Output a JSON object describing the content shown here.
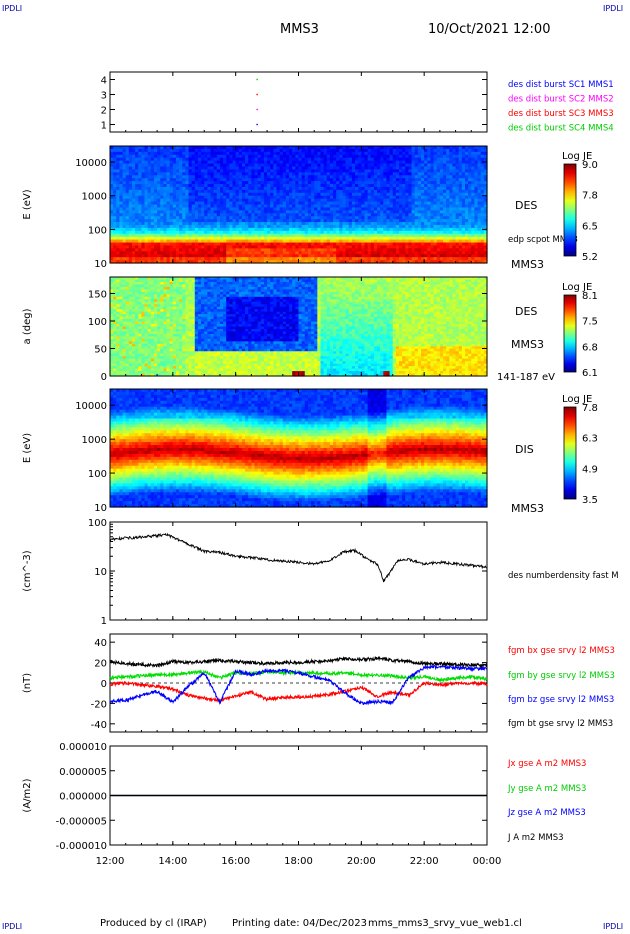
{
  "header": {
    "corner_label": "IPDLI",
    "spacecraft": "MMS3",
    "datetime": "10/Oct/2021 12:00"
  },
  "footer": {
    "produced_by": "Produced by cl (IRAP)",
    "printing_date": "Printing date: 04/Dec/2023",
    "script_name": "mms_mms3_srvy_vue_web1.cl"
  },
  "chart_data": [
    {
      "type": "scatter",
      "panel": "burst-availability",
      "ylim": [
        0.5,
        4.5
      ],
      "y_ticks": [
        "1",
        "2",
        "3",
        "4"
      ],
      "series": [
        {
          "name": "des dist burst SC1 MMS1",
          "color": "#0000ff",
          "x": [
            "16:41"
          ],
          "y": [
            1
          ]
        },
        {
          "name": "des dist burst SC2 MMS2",
          "color": "#ff00ff",
          "x": [
            "16:41"
          ],
          "y": [
            2
          ]
        },
        {
          "name": "des dist burst SC3 MMS3",
          "color": "#ff0000",
          "x": [
            "16:41"
          ],
          "y": [
            3
          ]
        },
        {
          "name": "des dist burst SC4 MMS4",
          "color": "#00cc00",
          "x": [
            "16:41"
          ],
          "y": [
            4
          ]
        }
      ]
    },
    {
      "type": "heatmap",
      "panel": "des-energy",
      "ylabel": "E (eV)",
      "y_scale": "log",
      "ylim": [
        10,
        30000
      ],
      "y_ticks": [
        "10",
        "100",
        "1000",
        "10000"
      ],
      "instrument": "DES",
      "spacecraft": "MMS3",
      "overlay_label": "edp scpot MMS3",
      "colorbar": {
        "title": "Log JE",
        "ticks": [
          "9.0",
          "7.8",
          "6.5",
          "5.2"
        ],
        "range": [
          5.2,
          9.0
        ]
      }
    },
    {
      "type": "heatmap",
      "panel": "des-pitch-angle",
      "ylabel": "a (deg)",
      "ylim": [
        0,
        180
      ],
      "y_ticks": [
        "0",
        "50",
        "100",
        "150"
      ],
      "instrument": "DES",
      "spacecraft": "MMS3",
      "energy_range": "141-187 eV",
      "colorbar": {
        "title": "Log JE",
        "ticks": [
          "8.1",
          "7.5",
          "6.8",
          "6.1"
        ],
        "range": [
          6.1,
          8.1
        ]
      }
    },
    {
      "type": "heatmap",
      "panel": "dis-energy",
      "ylabel": "E (eV)",
      "y_scale": "log",
      "ylim": [
        10,
        30000
      ],
      "y_ticks": [
        "10",
        "100",
        "1000",
        "10000"
      ],
      "instrument": "DIS",
      "spacecraft": "MMS3",
      "colorbar": {
        "title": "Log JE",
        "ticks": [
          "7.8",
          "6.3",
          "4.9",
          "3.5"
        ],
        "range": [
          3.5,
          7.8
        ]
      }
    },
    {
      "type": "line",
      "panel": "density",
      "ylabel": "(cm^-3)",
      "y_scale": "log",
      "ylim": [
        1,
        100
      ],
      "y_ticks": [
        "1",
        "10",
        "100"
      ],
      "series": [
        {
          "name": "des numberdensity fast M",
          "color": "#000000",
          "x": [
            12.0,
            12.5,
            13.0,
            13.5,
            13.8,
            14.2,
            14.6,
            15.0,
            15.5,
            16.0,
            16.5,
            17.0,
            17.5,
            18.0,
            18.5,
            19.0,
            19.4,
            19.8,
            20.2,
            20.5,
            20.7,
            20.9,
            21.2,
            21.5,
            22.0,
            22.5,
            23.0,
            23.5,
            24.0
          ],
          "y": [
            44,
            47,
            49,
            53,
            55,
            43,
            33,
            25,
            24,
            20,
            19,
            17,
            16,
            15,
            14,
            16,
            24,
            26,
            17,
            14,
            6,
            9,
            17,
            17,
            14,
            15,
            14,
            13,
            12
          ]
        }
      ]
    },
    {
      "type": "line",
      "panel": "magnetic-field",
      "ylabel": "(nT)",
      "ylim": [
        -48,
        48
      ],
      "y_ticks": [
        "-40",
        "-20",
        "0",
        "20",
        "40"
      ],
      "series": [
        {
          "name": "fgm bx gse srvy l2 MMS3",
          "color": "#ff0000",
          "x": [
            12.0,
            12.5,
            13.0,
            13.5,
            14.0,
            14.5,
            15.0,
            15.5,
            16.0,
            16.5,
            17.0,
            17.5,
            18.0,
            18.5,
            19.0,
            19.5,
            20.0,
            20.5,
            21.0,
            21.5,
            22.0,
            22.5,
            23.0,
            23.5,
            24.0
          ],
          "y": [
            -1,
            0,
            -2,
            -3,
            -6,
            -12,
            -15,
            -17,
            -13,
            -9,
            -16,
            -14,
            -14,
            -13,
            -11,
            -8,
            -4,
            -13,
            -9,
            -12,
            0,
            -2,
            0,
            0,
            -1
          ]
        },
        {
          "name": "fgm by gse srvy l2 MMS3",
          "color": "#00dd00",
          "x": [
            12.0,
            12.5,
            13.0,
            13.5,
            14.0,
            14.5,
            15.0,
            15.5,
            16.0,
            16.5,
            17.0,
            17.5,
            18.0,
            18.5,
            19.0,
            19.5,
            20.0,
            20.5,
            21.0,
            21.5,
            22.0,
            22.5,
            23.0,
            23.5,
            24.0
          ],
          "y": [
            5,
            6,
            7,
            8,
            8,
            10,
            11,
            5,
            10,
            9,
            11,
            10,
            10,
            10,
            9,
            10,
            8,
            8,
            7,
            5,
            6,
            3,
            5,
            6,
            4
          ]
        },
        {
          "name": "fgm bz gse srvy l2 MMS3",
          "color": "#0000ff",
          "x": [
            12.0,
            12.5,
            13.0,
            13.5,
            14.0,
            14.5,
            15.0,
            15.5,
            16.0,
            16.5,
            17.0,
            17.5,
            18.0,
            18.5,
            19.0,
            19.5,
            20.0,
            20.5,
            21.0,
            21.5,
            22.0,
            22.5,
            23.0,
            23.5,
            24.0
          ],
          "y": [
            -18,
            -17,
            -12,
            -8,
            -19,
            -3,
            10,
            -19,
            12,
            8,
            12,
            12,
            10,
            6,
            2,
            -10,
            -20,
            -18,
            -19,
            5,
            15,
            16,
            15,
            14,
            14
          ]
        },
        {
          "name": "fgm bt gse srvy l2 MMS3",
          "color": "#000000",
          "x": [
            12.0,
            12.5,
            13.0,
            13.5,
            14.0,
            14.5,
            15.0,
            15.5,
            16.0,
            16.5,
            17.0,
            17.5,
            18.0,
            18.5,
            19.0,
            19.5,
            20.0,
            20.5,
            21.0,
            21.5,
            22.0,
            22.5,
            23.0,
            23.5,
            24.0
          ],
          "y": [
            21,
            19,
            18,
            17,
            21,
            20,
            21,
            22,
            21,
            20,
            19,
            20,
            20,
            21,
            22,
            24,
            23,
            24,
            22,
            21,
            19,
            19,
            18,
            18,
            17
          ]
        }
      ]
    },
    {
      "type": "line",
      "panel": "current-density",
      "ylabel": "(A/m2)",
      "ylim": [
        -1e-05,
        1e-05
      ],
      "y_ticks": [
        "-0.000010",
        "-0.000005",
        "0.000000",
        "0.000005",
        "0.000010"
      ],
      "series": [
        {
          "name": "Jx gse A m2 MMS3",
          "color": "#ff0000",
          "x": [
            12,
            24
          ],
          "y": [
            0,
            0
          ]
        },
        {
          "name": "Jy gse A m2 MMS3",
          "color": "#00cc00",
          "x": [
            12,
            24
          ],
          "y": [
            0,
            0
          ]
        },
        {
          "name": "Jz gse A m2 MMS3",
          "color": "#0000ff",
          "x": [
            12,
            24
          ],
          "y": [
            0,
            0
          ]
        },
        {
          "name": "J A m2 MMS3",
          "color": "#000000",
          "x": [
            12,
            24
          ],
          "y": [
            0,
            0
          ]
        }
      ]
    }
  ],
  "time_axis": {
    "xlim": [
      12,
      24
    ],
    "ticks": [
      12,
      14,
      16,
      18,
      20,
      22,
      24
    ],
    "tick_labels": [
      "12:00",
      "14:00",
      "16:00",
      "18:00",
      "20:00",
      "22:00",
      "00:00"
    ]
  }
}
